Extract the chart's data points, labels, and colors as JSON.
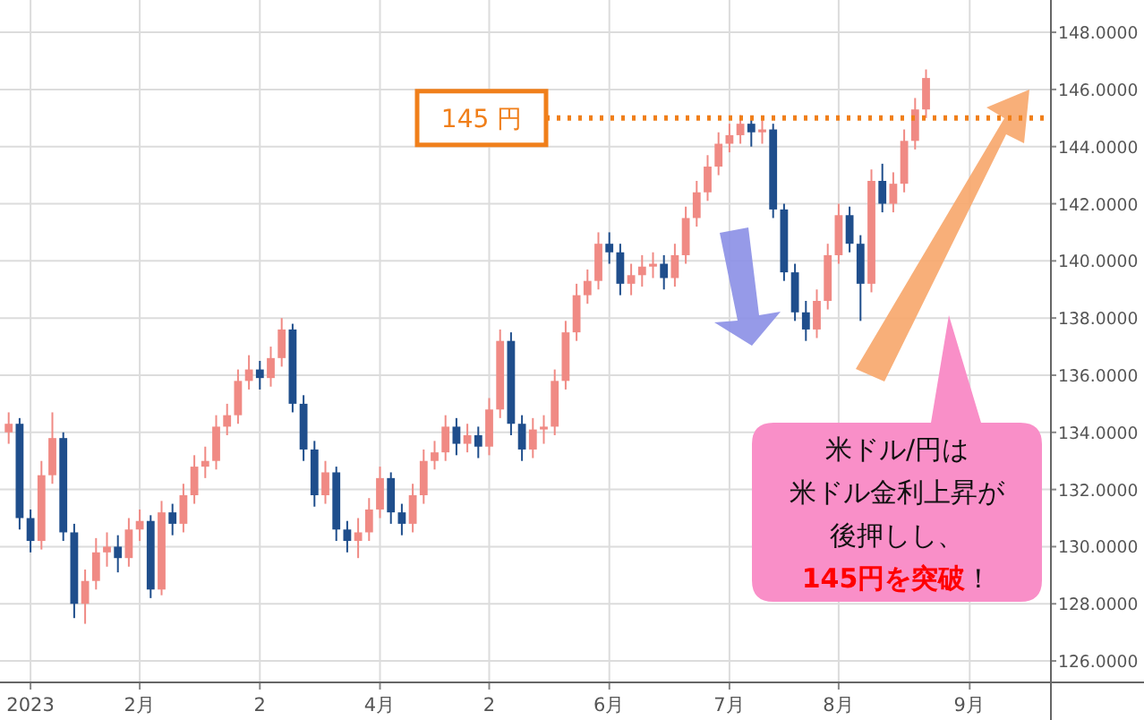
{
  "chart_data": {
    "type": "candlestick",
    "categories": [
      null,
      null,
      "2023",
      null,
      null,
      null,
      null,
      null,
      null,
      null,
      null,
      null,
      "2月",
      null,
      null,
      null,
      null,
      null,
      null,
      null,
      null,
      null,
      null,
      "2",
      null,
      null,
      null,
      null,
      null,
      null,
      null,
      null,
      null,
      null,
      "4月",
      null,
      null,
      null,
      null,
      null,
      null,
      null,
      null,
      null,
      "2",
      null,
      null,
      null,
      null,
      null,
      null,
      null,
      null,
      null,
      null,
      "6月",
      null,
      null,
      null,
      null,
      null,
      null,
      null,
      null,
      null,
      null,
      "7月",
      null,
      null,
      null,
      null,
      null,
      null,
      null,
      null,
      null,
      "8月",
      null,
      null,
      null,
      null,
      null,
      null,
      null,
      null,
      null,
      null,
      null,
      "9月"
    ],
    "ohlc": [
      [
        134.0,
        134.7,
        133.6,
        134.3
      ],
      [
        134.3,
        134.5,
        130.6,
        131.0
      ],
      [
        131.0,
        131.3,
        129.8,
        130.2
      ],
      [
        130.2,
        133.0,
        129.9,
        132.5
      ],
      [
        132.5,
        134.7,
        132.2,
        133.8
      ],
      [
        133.8,
        134.0,
        130.2,
        130.5
      ],
      [
        130.5,
        130.8,
        127.5,
        128.0
      ],
      [
        128.0,
        129.2,
        127.3,
        128.8
      ],
      [
        128.8,
        130.3,
        128.5,
        129.8
      ],
      [
        129.8,
        130.5,
        129.3,
        130.0
      ],
      [
        130.0,
        130.4,
        129.1,
        129.6
      ],
      [
        129.6,
        131.0,
        129.3,
        130.6
      ],
      [
        130.6,
        131.3,
        130.2,
        130.9
      ],
      [
        130.9,
        131.1,
        128.2,
        128.5
      ],
      [
        128.5,
        131.6,
        128.3,
        131.2
      ],
      [
        131.2,
        131.5,
        130.4,
        130.8
      ],
      [
        130.8,
        132.2,
        130.5,
        131.8
      ],
      [
        131.8,
        133.2,
        131.5,
        132.8
      ],
      [
        132.8,
        133.5,
        132.4,
        133.0
      ],
      [
        133.0,
        134.6,
        132.7,
        134.2
      ],
      [
        134.2,
        135.0,
        133.9,
        134.6
      ],
      [
        134.6,
        136.2,
        134.3,
        135.8
      ],
      [
        135.8,
        136.7,
        135.5,
        136.2
      ],
      [
        136.2,
        136.5,
        135.5,
        135.9
      ],
      [
        135.9,
        137.0,
        135.6,
        136.6
      ],
      [
        136.6,
        138.0,
        136.3,
        137.6
      ],
      [
        137.6,
        137.8,
        134.7,
        135.0
      ],
      [
        135.0,
        135.3,
        133.0,
        133.4
      ],
      [
        133.4,
        133.7,
        131.4,
        131.8
      ],
      [
        131.8,
        133.0,
        131.5,
        132.6
      ],
      [
        132.6,
        132.8,
        130.2,
        130.6
      ],
      [
        130.6,
        130.9,
        129.8,
        130.2
      ],
      [
        130.2,
        131.0,
        129.6,
        130.5
      ],
      [
        130.5,
        131.7,
        130.2,
        131.3
      ],
      [
        131.3,
        132.8,
        131.0,
        132.4
      ],
      [
        132.4,
        132.6,
        130.8,
        131.2
      ],
      [
        131.2,
        131.5,
        130.4,
        130.8
      ],
      [
        130.8,
        132.2,
        130.5,
        131.8
      ],
      [
        131.8,
        133.4,
        131.5,
        133.0
      ],
      [
        133.0,
        133.7,
        132.7,
        133.3
      ],
      [
        133.3,
        134.6,
        133.0,
        134.2
      ],
      [
        134.2,
        134.5,
        133.2,
        133.6
      ],
      [
        133.6,
        134.3,
        133.3,
        133.9
      ],
      [
        133.9,
        134.2,
        133.1,
        133.5
      ],
      [
        133.5,
        135.2,
        133.2,
        134.8
      ],
      [
        134.8,
        137.6,
        134.5,
        137.2
      ],
      [
        137.2,
        137.5,
        133.9,
        134.3
      ],
      [
        134.3,
        134.6,
        133.0,
        133.4
      ],
      [
        133.4,
        134.5,
        133.1,
        134.1
      ],
      [
        134.1,
        134.6,
        133.6,
        134.2
      ],
      [
        134.2,
        136.2,
        133.9,
        135.8
      ],
      [
        135.8,
        137.9,
        135.5,
        137.5
      ],
      [
        137.5,
        139.2,
        137.2,
        138.8
      ],
      [
        138.8,
        139.7,
        138.5,
        139.3
      ],
      [
        139.3,
        141.0,
        139.0,
        140.6
      ],
      [
        140.6,
        141.0,
        139.9,
        140.3
      ],
      [
        140.3,
        140.6,
        138.8,
        139.2
      ],
      [
        139.2,
        139.9,
        138.8,
        139.5
      ],
      [
        139.5,
        140.2,
        139.1,
        139.8
      ],
      [
        139.8,
        140.3,
        139.4,
        139.9
      ],
      [
        139.9,
        140.2,
        139.0,
        139.4
      ],
      [
        139.4,
        140.6,
        139.1,
        140.2
      ],
      [
        140.2,
        141.9,
        139.9,
        141.5
      ],
      [
        141.5,
        142.8,
        141.2,
        142.4
      ],
      [
        142.4,
        143.7,
        142.1,
        143.3
      ],
      [
        143.3,
        144.5,
        143.0,
        144.1
      ],
      [
        144.1,
        144.8,
        143.8,
        144.4
      ],
      [
        144.4,
        145.1,
        144.1,
        144.8
      ],
      [
        144.8,
        145.0,
        144.0,
        144.5
      ],
      [
        144.5,
        145.0,
        144.1,
        144.6
      ],
      [
        144.6,
        144.8,
        141.5,
        141.8
      ],
      [
        141.8,
        142.0,
        139.3,
        139.6
      ],
      [
        139.6,
        139.9,
        137.9,
        138.2
      ],
      [
        138.2,
        138.6,
        137.2,
        137.6
      ],
      [
        137.6,
        139.0,
        137.3,
        138.6
      ],
      [
        138.6,
        140.6,
        138.3,
        140.2
      ],
      [
        140.2,
        142.0,
        139.9,
        141.6
      ],
      [
        141.6,
        141.9,
        140.3,
        140.6
      ],
      [
        140.6,
        140.9,
        137.9,
        139.2
      ],
      [
        139.2,
        143.2,
        138.9,
        142.8
      ],
      [
        142.8,
        143.4,
        141.7,
        142.0
      ],
      [
        142.0,
        143.1,
        141.7,
        142.7
      ],
      [
        142.7,
        144.6,
        142.4,
        144.2
      ],
      [
        144.2,
        145.7,
        143.9,
        145.3
      ],
      [
        145.3,
        146.7,
        145.0,
        146.4
      ],
      null,
      null,
      null,
      null
    ],
    "colors": [
      "#f08a84",
      "#1f4e8c",
      "#1f4e8c",
      "#f08a84",
      "#f08a84",
      "#1f4e8c",
      "#1f4e8c",
      "#f08a84",
      "#f08a84",
      "#f08a84",
      "#1f4e8c",
      "#f08a84",
      "#f08a84",
      "#1f4e8c",
      "#f08a84",
      "#1f4e8c",
      "#f08a84",
      "#f08a84",
      "#f08a84",
      "#f08a84",
      "#f08a84",
      "#f08a84",
      "#f08a84",
      "#1f4e8c",
      "#f08a84",
      "#f08a84",
      "#1f4e8c",
      "#1f4e8c",
      "#1f4e8c",
      "#f08a84",
      "#1f4e8c",
      "#1f4e8c",
      "#f08a84",
      "#f08a84",
      "#f08a84",
      "#1f4e8c",
      "#1f4e8c",
      "#f08a84",
      "#f08a84",
      "#f08a84",
      "#f08a84",
      "#1f4e8c",
      "#f08a84",
      "#1f4e8c",
      "#f08a84",
      "#f08a84",
      "#1f4e8c",
      "#1f4e8c",
      "#f08a84",
      "#f08a84",
      "#f08a84",
      "#f08a84",
      "#f08a84",
      "#f08a84",
      "#f08a84",
      "#1f4e8c",
      "#1f4e8c",
      "#f08a84",
      "#f08a84",
      "#f08a84",
      "#1f4e8c",
      "#f08a84",
      "#f08a84",
      "#f08a84",
      "#f08a84",
      "#f08a84",
      "#f08a84",
      "#f08a84",
      "#1f4e8c",
      "#f08a84",
      "#1f4e8c",
      "#1f4e8c",
      "#1f4e8c",
      "#1f4e8c",
      "#f08a84",
      "#f08a84",
      "#f08a84",
      "#1f4e8c",
      "#1f4e8c",
      "#f08a84",
      "#1f4e8c",
      "#f08a84",
      "#f08a84",
      "#f08a84",
      "#f08a84",
      null,
      null,
      null,
      null
    ],
    "ylim": [
      125.25,
      149.13
    ],
    "yticks": [
      {
        "value": 126,
        "label": "126.0000"
      },
      {
        "value": 128,
        "label": "128.0000"
      },
      {
        "value": 130,
        "label": "130.0000"
      },
      {
        "value": 132,
        "label": "132.0000"
      },
      {
        "value": 134,
        "label": "134.0000"
      },
      {
        "value": 136,
        "label": "136.0000"
      },
      {
        "value": 138,
        "label": "138.0000"
      },
      {
        "value": 140,
        "label": "140.0000"
      },
      {
        "value": 142,
        "label": "142.0000"
      },
      {
        "value": 144,
        "label": "144.0000"
      },
      {
        "value": 146,
        "label": "146.0000"
      },
      {
        "value": 148,
        "label": "148.0000"
      }
    ],
    "grid": true,
    "ref_lines": [
      {
        "axis": "y",
        "value": 145,
        "label": "145 円",
        "color": "#f07f1a",
        "line_style": "dotted"
      }
    ],
    "annotations": [
      "米ドル/円は米ドル金利上昇が後押しし、**145円を突破**！"
    ]
  }
}
